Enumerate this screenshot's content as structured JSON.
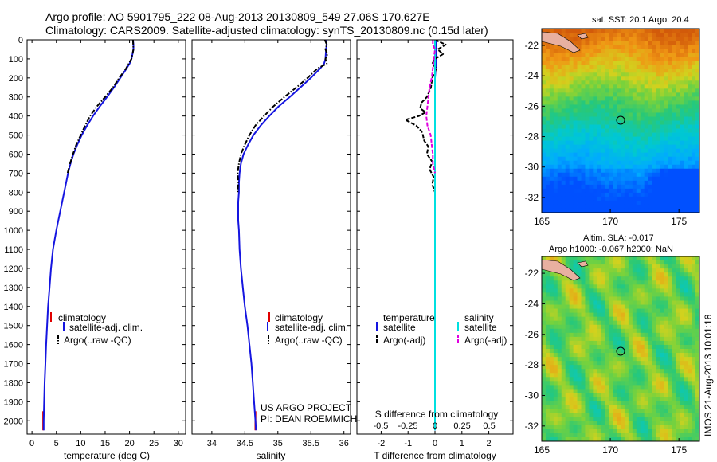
{
  "header": {
    "line1": "Argo profile: AO 5901795_222 08-Aug-2013 20130809_549 27.06S 170.627E",
    "line2": "Climatology: CARS2009. Satellite-adjusted climatology: synTS_20130809.nc (0.15d later)"
  },
  "colors": {
    "climatology": "#e00000",
    "satellite": "#1515e0",
    "argo": "#000000",
    "sat_salinity": "#00e0e0",
    "argo_salinity_diff": "#e000e0"
  },
  "depth_axis": {
    "ticks": [
      "0",
      "100",
      "200",
      "300",
      "400",
      "500",
      "600",
      "700",
      "800",
      "900",
      "1000",
      "1100",
      "1200",
      "1300",
      "1400",
      "1500",
      "1600",
      "1700",
      "1800",
      "1900",
      "2000"
    ],
    "ylim": [
      0,
      2070
    ]
  },
  "panels": {
    "temperature": {
      "xlabel": "temperature (deg C)",
      "ticks": [
        "0",
        "5",
        "10",
        "15",
        "20",
        "25",
        "30"
      ],
      "legend": [
        "climatology",
        "satellite-adj. clim.",
        "Argo(..raw -QC)"
      ]
    },
    "salinity": {
      "xlabel": "salinity",
      "ticks": [
        "34",
        "34.5",
        "35",
        "35.5",
        "36"
      ],
      "legend": [
        "climatology",
        "satellite-adj. clim.",
        "Argo(..raw -QC)"
      ],
      "credit1": "US ARGO PROJECT",
      "credit2": "PI: DEAN ROEMMICH"
    },
    "difference": {
      "xlabel": "T difference from climatology",
      "ticks": [
        "-2",
        "-1",
        "0",
        "1",
        "2"
      ],
      "s_label": "S difference from climatology",
      "s_ticks": [
        "-0.5",
        "-0.25",
        "0",
        "0.25",
        "0.5"
      ],
      "legend_head_t": "temperature",
      "legend_head_s": "salinity",
      "legend_t": [
        "satellite",
        "Argo(-adj)"
      ],
      "legend_s": [
        "satellite",
        "Argo(-adj)"
      ]
    }
  },
  "maps": {
    "sst_title": "sat. SST: 20.1 Argo: 20.4",
    "sla_title1": "Altim. SLA: -0.017",
    "sla_title2": "Argo h1000: -0.067 h2000: NaN",
    "lon_ticks": [
      "165",
      "170",
      "175"
    ],
    "lat_ticks": [
      "-22",
      "-24",
      "-26",
      "-28",
      "-30",
      "-32"
    ],
    "float_position": {
      "lon": 170.627,
      "lat": -27.06
    }
  },
  "watermark": "IMOS 21-Aug-2013 10:01:18",
  "chart_data": [
    {
      "type": "line",
      "title": "temperature",
      "xlabel": "temperature (deg C)",
      "ylabel": "",
      "xlim": [
        -1,
        31.5
      ],
      "ylim": [
        2070,
        0
      ],
      "series": [
        {
          "name": "climatology",
          "depth": [
            1950,
            2050
          ],
          "values": [
            2.3,
            2.3
          ]
        },
        {
          "name": "satellite-adj. clim.",
          "depth": [
            0,
            25,
            50,
            75,
            100,
            125,
            150,
            200,
            250,
            300,
            350,
            400,
            450,
            500,
            550,
            600,
            650,
            700,
            750,
            800,
            900,
            1000,
            1100,
            1200,
            1300,
            1400,
            1500,
            1600,
            1700,
            1800,
            1900,
            2000,
            2050
          ],
          "values": [
            20.7,
            20.8,
            20.8,
            20.6,
            20.4,
            20.0,
            19.4,
            18.1,
            16.8,
            15.4,
            13.9,
            12.5,
            11.3,
            10.2,
            9.3,
            8.5,
            7.9,
            7.4,
            7.0,
            6.6,
            5.8,
            5.0,
            4.3,
            3.9,
            3.6,
            3.3,
            3.1,
            2.9,
            2.75,
            2.6,
            2.5,
            2.4,
            2.4
          ]
        },
        {
          "name": "Argo(..raw -QC)",
          "depth": [
            0,
            50,
            100,
            150,
            200,
            250,
            300,
            350,
            400,
            450,
            500,
            550,
            600,
            650,
            700
          ],
          "values": [
            20.7,
            20.8,
            20.4,
            19.3,
            17.9,
            16.6,
            15.0,
            13.3,
            11.9,
            10.9,
            10.0,
            9.1,
            8.4,
            7.8,
            7.3
          ]
        }
      ]
    },
    {
      "type": "line",
      "title": "salinity",
      "xlabel": "salinity",
      "ylabel": "",
      "xlim": [
        33.7,
        36.1
      ],
      "ylim": [
        2070,
        0
      ],
      "series": [
        {
          "name": "climatology",
          "depth": [
            1950,
            2050
          ],
          "values": [
            34.66,
            34.66
          ]
        },
        {
          "name": "satellite-adj. clim.",
          "depth": [
            0,
            25,
            50,
            100,
            125,
            150,
            200,
            250,
            300,
            350,
            400,
            450,
            500,
            550,
            600,
            650,
            700,
            750,
            800,
            850,
            900,
            950,
            1000,
            1100,
            1200,
            1300,
            1400,
            1500,
            1600,
            1700,
            1800,
            1900,
            2000,
            2050
          ],
          "values": [
            35.73,
            35.74,
            35.73,
            35.72,
            35.7,
            35.64,
            35.5,
            35.34,
            35.18,
            35.01,
            34.87,
            34.74,
            34.63,
            34.55,
            34.48,
            34.44,
            34.42,
            34.41,
            34.41,
            34.4,
            34.4,
            34.4,
            34.41,
            34.42,
            34.44,
            34.47,
            34.5,
            34.54,
            34.57,
            34.6,
            34.62,
            34.64,
            34.66,
            34.67
          ]
        },
        {
          "name": "Argo(..raw -QC)",
          "depth": [
            0,
            25,
            50,
            75,
            100,
            125,
            150,
            200,
            250,
            300,
            350,
            400,
            450,
            500,
            550,
            600,
            650,
            700,
            750,
            800
          ],
          "values": [
            35.71,
            35.74,
            35.72,
            35.75,
            35.72,
            35.74,
            35.6,
            35.45,
            35.28,
            35.1,
            34.93,
            34.79,
            34.66,
            34.57,
            34.5,
            34.44,
            34.41,
            34.39,
            34.4,
            34.39
          ]
        }
      ]
    },
    {
      "type": "line",
      "title": "difference from climatology",
      "xlabel": "T difference from climatology",
      "ylabel": "",
      "xlim": [
        -2.9,
        2.9
      ],
      "ylim": [
        2070,
        0
      ],
      "series": [
        {
          "name": "temperature satellite",
          "depth": [
            0,
            100,
            200,
            300,
            400,
            500,
            600,
            700,
            800,
            1000,
            1200,
            1400,
            1600,
            1800,
            2000,
            2050
          ],
          "values": [
            0.05,
            0.05,
            0.0,
            0.0,
            0.0,
            0.0,
            0.0,
            0.0,
            0.0,
            0.0,
            0.0,
            0.0,
            0.0,
            0.0,
            0.0,
            0.0
          ]
        },
        {
          "name": "temperature Argo(-adj)",
          "depth": [
            0,
            25,
            50,
            75,
            100,
            125,
            150,
            200,
            250,
            300,
            330,
            360,
            380,
            400,
            420,
            450,
            480,
            500,
            530,
            560,
            600,
            640,
            680,
            720,
            760,
            800
          ],
          "values": [
            0.0,
            0.4,
            0.1,
            0.3,
            0.0,
            -0.1,
            0.05,
            -0.1,
            -0.15,
            -0.3,
            -0.5,
            -0.55,
            -0.35,
            -0.6,
            -1.1,
            -0.7,
            -0.5,
            -0.45,
            -0.4,
            -0.25,
            -0.3,
            -0.1,
            -0.2,
            -0.05,
            -0.1,
            0.0
          ]
        },
        {
          "name": "salinity satellite",
          "depth": [
            0,
            100,
            200,
            400,
            600,
            800,
            1000,
            1200,
            1400,
            1600,
            1800,
            2000,
            2050
          ],
          "values": [
            0.0,
            0.0,
            0.0,
            0.0,
            0.0,
            0.0,
            0.0,
            0.0,
            0.0,
            0.0,
            0.0,
            0.0,
            0.0
          ]
        },
        {
          "name": "salinity Argo(-adj)",
          "depth": [
            0,
            25,
            50,
            100,
            150,
            200,
            250,
            300,
            350,
            400,
            450,
            500,
            550,
            600,
            650,
            700
          ],
          "values": [
            -0.02,
            -0.02,
            0.0,
            -0.01,
            -0.02,
            -0.03,
            -0.05,
            -0.06,
            -0.07,
            -0.08,
            -0.07,
            -0.04,
            -0.03,
            -0.02,
            -0.02,
            0.0
          ]
        }
      ]
    },
    {
      "type": "heatmap",
      "title": "sat. SST: 20.1 Argo: 20.4",
      "xlabel": "",
      "ylabel": "",
      "xlim": [
        165,
        176.5
      ],
      "ylim": [
        -33,
        -20.9
      ]
    },
    {
      "type": "heatmap",
      "title": "Altim. SLA: -0.017",
      "xlabel": "",
      "ylabel": "",
      "xlim": [
        165,
        176.5
      ],
      "ylim": [
        -33,
        -20.9
      ]
    }
  ]
}
